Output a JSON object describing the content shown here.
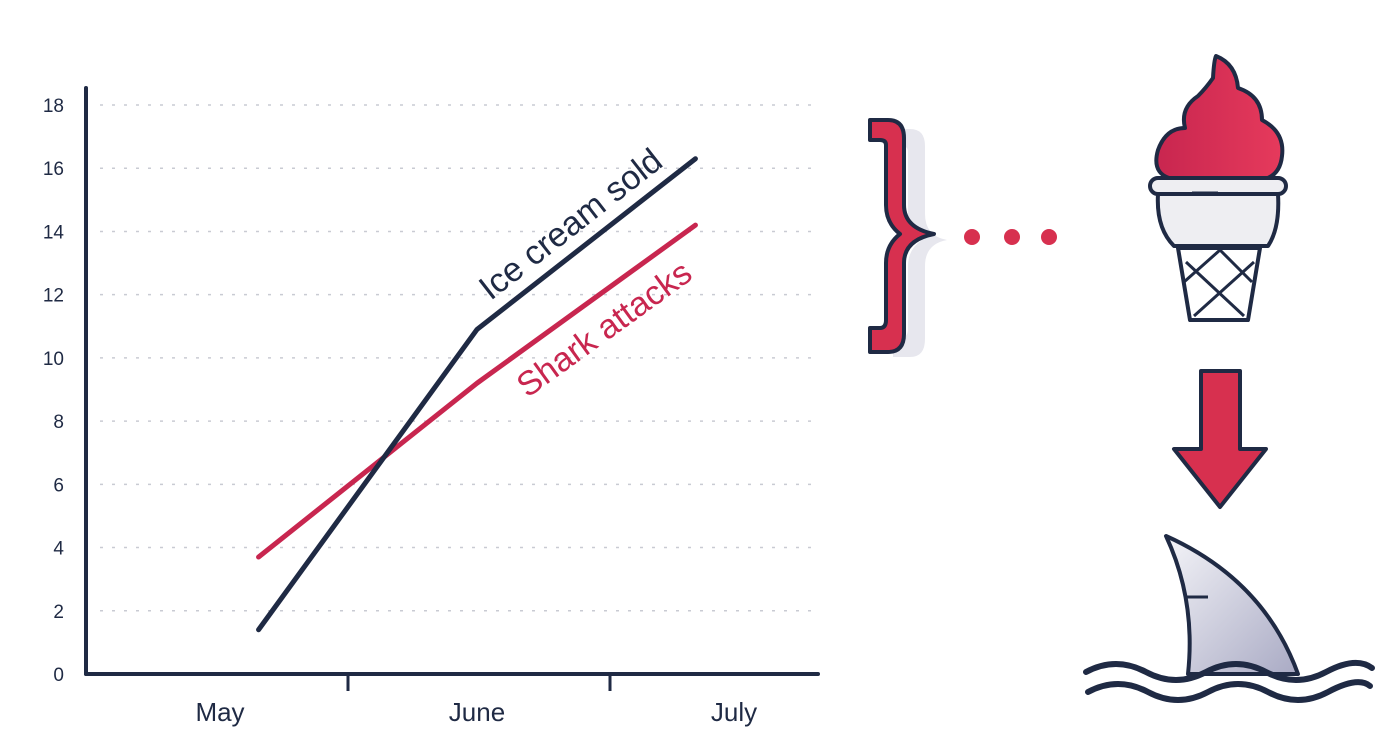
{
  "chart_data": {
    "type": "line",
    "categories": [
      "May",
      "June",
      "July"
    ],
    "yticks": [
      0,
      2,
      4,
      6,
      8,
      10,
      12,
      14,
      16,
      18
    ],
    "ylim": [
      0,
      18
    ],
    "grid": true,
    "series": [
      {
        "name": "Ice cream sold",
        "color": "#1f2a44",
        "x": [
          0.15,
          1.0,
          1.85
        ],
        "y": [
          1.4,
          10.9,
          16.3
        ]
      },
      {
        "name": "Shark attacks",
        "color": "#c8264f",
        "x": [
          0.15,
          1.0,
          1.85
        ],
        "y": [
          3.7,
          9.2,
          14.2
        ]
      }
    ]
  },
  "illustration": {
    "brace_icon": "curly-brace-icon",
    "dots_icon": "ellipsis-icon",
    "cone_icon": "ice-cream-icon",
    "arrow_icon": "down-arrow-icon",
    "fin_icon": "shark-fin-icon",
    "colors": {
      "accent": "#d7304f",
      "dark": "#1f2a44",
      "light": "#eeeef2",
      "fin": "#cfd0e0"
    }
  }
}
